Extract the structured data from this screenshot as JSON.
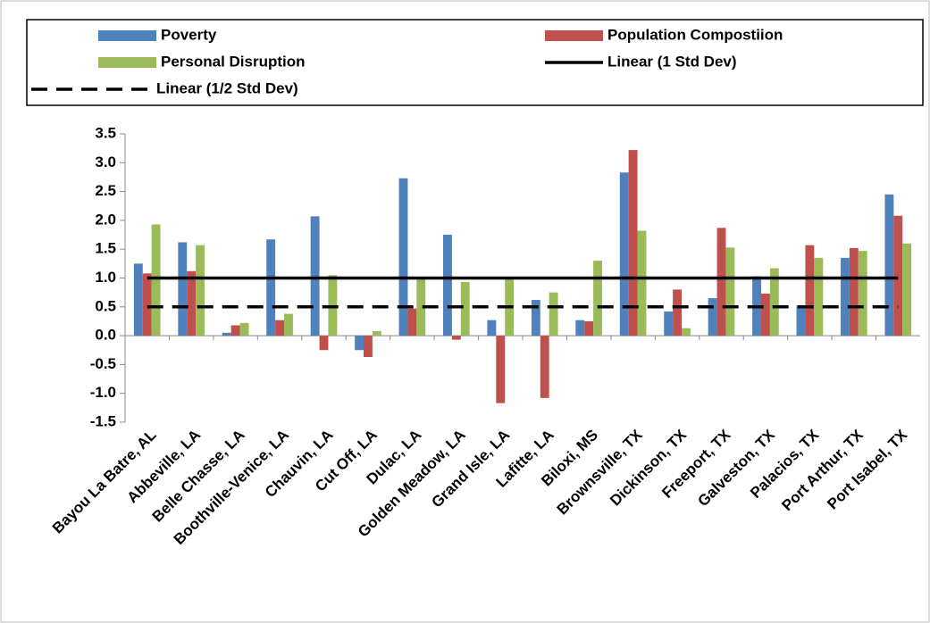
{
  "chart_data": {
    "type": "bar",
    "categories": [
      "Bayou La Batre, AL",
      "Abbeville, LA",
      "Belle Chasse, LA",
      "Boothville-Venice, LA",
      "Chauvin, LA",
      "Cut Off, LA",
      "Dulac, LA",
      "Golden Meadow, LA",
      "Grand Isle, LA",
      "Lafitte, LA",
      "Biloxi, MS",
      "Brownsville, TX",
      "Dickinson, TX",
      "Freeport, TX",
      "Galveston, TX",
      "Palacios, TX",
      "Port Arthur, TX",
      "Port Isabel, TX"
    ],
    "series": [
      {
        "name": "Poverty",
        "color": "#4f81bd",
        "values": [
          1.25,
          1.62,
          0.05,
          1.67,
          2.07,
          -0.25,
          2.73,
          1.75,
          0.27,
          0.62,
          0.27,
          2.83,
          0.42,
          0.65,
          1.03,
          0.52,
          1.35,
          2.45
        ]
      },
      {
        "name": "Population Compostiion",
        "color": "#c0504d",
        "values": [
          1.08,
          1.12,
          0.18,
          0.27,
          -0.25,
          -0.37,
          0.47,
          -0.07,
          -1.17,
          -1.08,
          0.25,
          3.22,
          0.8,
          1.87,
          0.73,
          1.57,
          1.52,
          2.08
        ]
      },
      {
        "name": "Personal Disruption",
        "color": "#9bbb59",
        "values": [
          1.93,
          1.57,
          0.22,
          0.38,
          1.05,
          0.08,
          1.0,
          0.93,
          1.0,
          0.75,
          1.3,
          1.82,
          0.13,
          1.53,
          1.17,
          1.35,
          1.47,
          1.6
        ]
      },
      {
        "name": "Linear (1 Std Dev)",
        "color": "#000000",
        "kind": "line",
        "values": [
          1,
          1,
          1,
          1,
          1,
          1,
          1,
          1,
          1,
          1,
          1,
          1,
          1,
          1,
          1,
          1,
          1,
          1
        ]
      },
      {
        "name": "Linear (1/2 Std Dev)",
        "color": "#000000",
        "kind": "line",
        "dashed": true,
        "values": [
          0.5,
          0.5,
          0.5,
          0.5,
          0.5,
          0.5,
          0.5,
          0.5,
          0.5,
          0.5,
          0.5,
          0.5,
          0.5,
          0.5,
          0.5,
          0.5,
          0.5,
          0.5
        ]
      }
    ],
    "ylim": [
      -1.5,
      3.5
    ],
    "yticks": [
      -1.5,
      {
        "value": -1,
        "label": "-1.0"
      },
      -0.5,
      {
        "value": 0,
        "label": "0.0"
      },
      0.5,
      {
        "value": 1,
        "label": "1.0"
      },
      1.5,
      {
        "value": 2,
        "label": "2.0"
      },
      2.5,
      {
        "value": 3,
        "label": "3.0"
      },
      3.5
    ],
    "legend": "top"
  }
}
